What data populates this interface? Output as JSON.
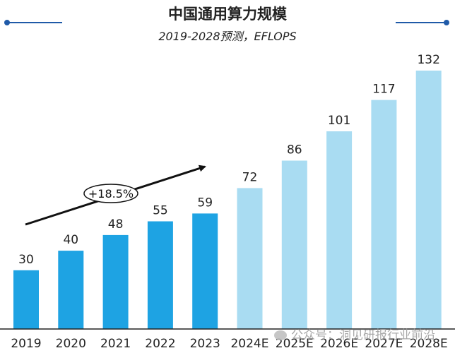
{
  "chart_data": {
    "type": "bar",
    "title": "中国通用算力规模",
    "subtitle": "2019-2028预测，EFLOPS",
    "categories": [
      "2019",
      "2020",
      "2021",
      "2022",
      "2023",
      "2024E",
      "2025E",
      "2026E",
      "2027E",
      "2028E"
    ],
    "values": [
      30,
      40,
      48,
      55,
      59,
      72,
      86,
      101,
      117,
      132
    ],
    "forecast_from_index": 5,
    "ylim": [
      0,
      140
    ],
    "grid": false,
    "annotation": "+18.5%",
    "colors": {
      "actual": "#1ea3e3",
      "forecast": "#a9dcf2",
      "axis": "#222222",
      "text": "#222222",
      "accent": "#1f5aa8"
    }
  },
  "watermark": "公众号：洞见研报行业前沿"
}
